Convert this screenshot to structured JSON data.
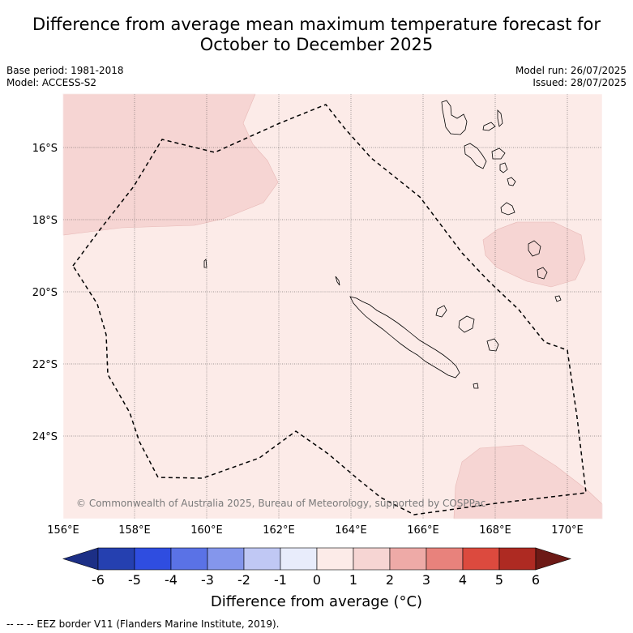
{
  "title_line1": "Difference from average mean maximum temperature forecast for",
  "title_line2": "October to December 2025",
  "meta_left": [
    "Base period: 1981-2018",
    "Model: ACCESS-S2"
  ],
  "meta_right": [
    "Model run: 26/07/2025",
    "Issued: 28/07/2025"
  ],
  "copyright": "© Commonwealth of Australia 2025, Bureau of Meteorology, supported by COSPPac",
  "lat_labels": [
    "16°S",
    "18°S",
    "20°S",
    "22°S",
    "24°S"
  ],
  "lon_labels": [
    "156°E",
    "158°E",
    "160°E",
    "162°E",
    "164°E",
    "166°E",
    "168°E",
    "170°E"
  ],
  "colorbar": {
    "ticks": [
      "-6",
      "-5",
      "-4",
      "-3",
      "-2",
      "-1",
      "0",
      "1",
      "2",
      "3",
      "4",
      "5",
      "6"
    ],
    "colors": [
      "#1c2f86",
      "#2540b0",
      "#2f4de0",
      "#5a72e6",
      "#8496ec",
      "#c0c8f4",
      "#e8ecfb",
      "#fcebe8",
      "#f6d5d3",
      "#eeaaa7",
      "#e8827c",
      "#dc4a3e",
      "#ae2a22",
      "#6d1a16"
    ],
    "title": "Difference from average (°C)"
  },
  "footer": "--  --  -- EEZ border V11 (Flanders Marine Institute, 2019).",
  "colors": {
    "background_anomaly": "#fcebe8",
    "anomaly_1_2": "#f6d5d3",
    "eez_border": "#000000"
  }
}
